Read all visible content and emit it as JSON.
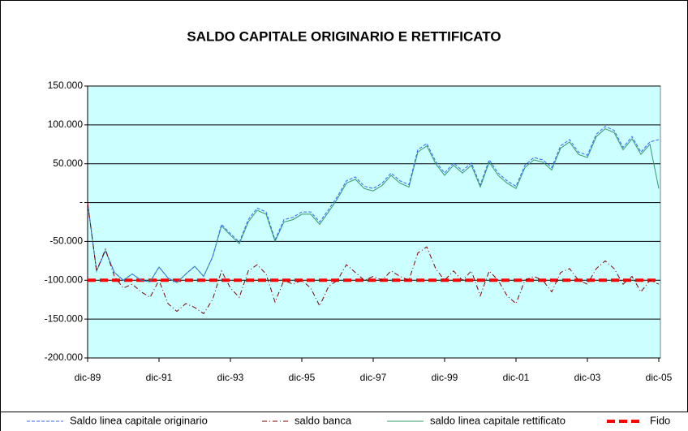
{
  "chart_data": {
    "type": "line",
    "title": "SALDO CAPITALE ORIGINARIO E RETTIFICATO",
    "categories": [
      "dic-89",
      null,
      null,
      null,
      null,
      null,
      null,
      null,
      "dic-91",
      null,
      null,
      null,
      null,
      null,
      null,
      null,
      "dic-93",
      null,
      null,
      null,
      null,
      null,
      null,
      null,
      "dic-95",
      null,
      null,
      null,
      null,
      null,
      null,
      null,
      "dic-97",
      null,
      null,
      null,
      null,
      null,
      null,
      null,
      "dic-99",
      null,
      null,
      null,
      null,
      null,
      null,
      null,
      "dic-01",
      null,
      null,
      null,
      null,
      null,
      null,
      null,
      "dic-03",
      null,
      null,
      null,
      null,
      null,
      null,
      null,
      "dic-05"
    ],
    "series": [
      {
        "name": "Saldo linea capitale originario",
        "color": "#3366ff",
        "dash": "4 2",
        "width": 1,
        "values": [
          0,
          -88000,
          -62000,
          -90000,
          -100000,
          -92000,
          -100000,
          -102000,
          -83000,
          -97000,
          -103000,
          -92000,
          -82000,
          -95000,
          -70000,
          -28000,
          -40000,
          -51000,
          -22000,
          -7000,
          -12000,
          -48000,
          -22000,
          -19000,
          -12000,
          -12000,
          -25000,
          -9000,
          8000,
          28000,
          33000,
          21000,
          18000,
          25000,
          38000,
          28000,
          23000,
          68000,
          76000,
          53000,
          38000,
          51000,
          41000,
          51000,
          23000,
          55000,
          38000,
          28000,
          21000,
          48000,
          58000,
          55000,
          45000,
          73000,
          81000,
          65000,
          61000,
          88000,
          98000,
          93000,
          71000,
          85000,
          65000,
          78000,
          81000
        ]
      },
      {
        "name": "saldo banca",
        "color": "#800000",
        "dash": "6 3 1 3",
        "width": 1,
        "values": [
          0,
          -88000,
          -60000,
          -95000,
          -110000,
          -105000,
          -115000,
          -122000,
          -100000,
          -130000,
          -140000,
          -130000,
          -135000,
          -143000,
          -125000,
          -88000,
          -110000,
          -122000,
          -88000,
          -80000,
          -92000,
          -128000,
          -100000,
          -105000,
          -100000,
          -110000,
          -133000,
          -108000,
          -100000,
          -80000,
          -90000,
          -100000,
          -95000,
          -100000,
          -88000,
          -95000,
          -100000,
          -65000,
          -57000,
          -85000,
          -100000,
          -88000,
          -100000,
          -88000,
          -120000,
          -88000,
          -100000,
          -120000,
          -130000,
          -100000,
          -95000,
          -100000,
          -115000,
          -90000,
          -85000,
          -100000,
          -105000,
          -85000,
          -75000,
          -85000,
          -105000,
          -95000,
          -115000,
          -100000,
          -105000
        ]
      },
      {
        "name": "saldo linea capitale rettificato",
        "color": "#339966",
        "dash": "none",
        "width": 1,
        "values": [
          0,
          -88000,
          -62000,
          -90000,
          -100000,
          -92000,
          -100000,
          -102000,
          -83000,
          -97000,
          -103000,
          -92000,
          -82000,
          -95000,
          -70000,
          -30000,
          -42000,
          -53000,
          -25000,
          -10000,
          -15000,
          -50000,
          -25000,
          -22000,
          -15000,
          -15000,
          -28000,
          -12000,
          5000,
          25000,
          30000,
          18000,
          15000,
          22000,
          35000,
          25000,
          20000,
          65000,
          73000,
          50000,
          35000,
          48000,
          38000,
          48000,
          20000,
          52000,
          35000,
          25000,
          18000,
          45000,
          55000,
          52000,
          42000,
          70000,
          78000,
          62000,
          58000,
          85000,
          95000,
          90000,
          68000,
          82000,
          62000,
          75000,
          18000
        ]
      },
      {
        "name": "Fido",
        "color": "#ff0000",
        "dash": "10 5",
        "width": 4,
        "values": [
          -100000,
          -100000,
          -100000,
          -100000,
          -100000,
          -100000,
          -100000,
          -100000,
          -100000,
          -100000,
          -100000,
          -100000,
          -100000,
          -100000,
          -100000,
          -100000,
          -100000,
          -100000,
          -100000,
          -100000,
          -100000,
          -100000,
          -100000,
          -100000,
          -100000,
          -100000,
          -100000,
          -100000,
          -100000,
          -100000,
          -100000,
          -100000,
          -100000,
          -100000,
          -100000,
          -100000,
          -100000,
          -100000,
          -100000,
          -100000,
          -100000,
          -100000,
          -100000,
          -100000,
          -100000,
          -100000,
          -100000,
          -100000,
          -100000,
          -100000,
          -100000,
          -100000,
          -100000,
          -100000,
          -100000,
          -100000,
          -100000,
          -100000,
          -100000,
          -100000,
          -100000,
          -100000,
          -100000,
          -100000,
          -100000
        ]
      }
    ],
    "ylim": [
      -200000,
      150000
    ],
    "yticks": [
      {
        "value": -200000,
        "label": "-200.000"
      },
      {
        "value": -150000,
        "label": "-150.000"
      },
      {
        "value": -100000,
        "label": "-100.000"
      },
      {
        "value": -50000,
        "label": "-50.000"
      },
      {
        "value": 0,
        "label": "-"
      },
      {
        "value": 50000,
        "label": "50.000"
      },
      {
        "value": 100000,
        "label": "100.000"
      },
      {
        "value": 150000,
        "label": "150.000"
      }
    ],
    "grid": true,
    "background": "#ccffff",
    "legend": "bottom"
  }
}
